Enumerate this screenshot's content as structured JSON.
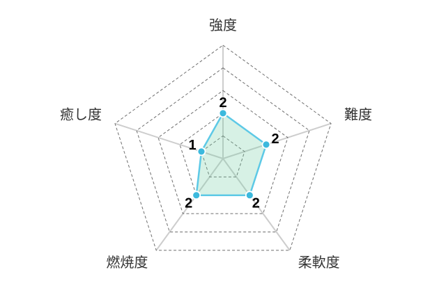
{
  "chart_data": {
    "type": "radar",
    "categories": [
      "強度",
      "難度",
      "柔軟度",
      "燃焼度",
      "癒し度"
    ],
    "values": [
      2,
      2,
      2,
      2,
      1
    ],
    "value_labels": [
      "2",
      "2",
      "2",
      "2",
      "1"
    ],
    "scale": {
      "min": 0,
      "max": 5,
      "rings": 5
    },
    "grid": "dashed-concentric-pentagons",
    "legend": "none",
    "title": "",
    "colors": {
      "fill": "rgba(111, 205, 160, 0.28)",
      "stroke": "#5dc9e6",
      "point_fill": "#3cb9dd",
      "point_border": "#ffffff",
      "grid_line": "#6e6e6e",
      "axis_line": "#cdcdcd",
      "axis_label": "#333333",
      "value_label": "#000000",
      "background": "#ffffff"
    }
  }
}
